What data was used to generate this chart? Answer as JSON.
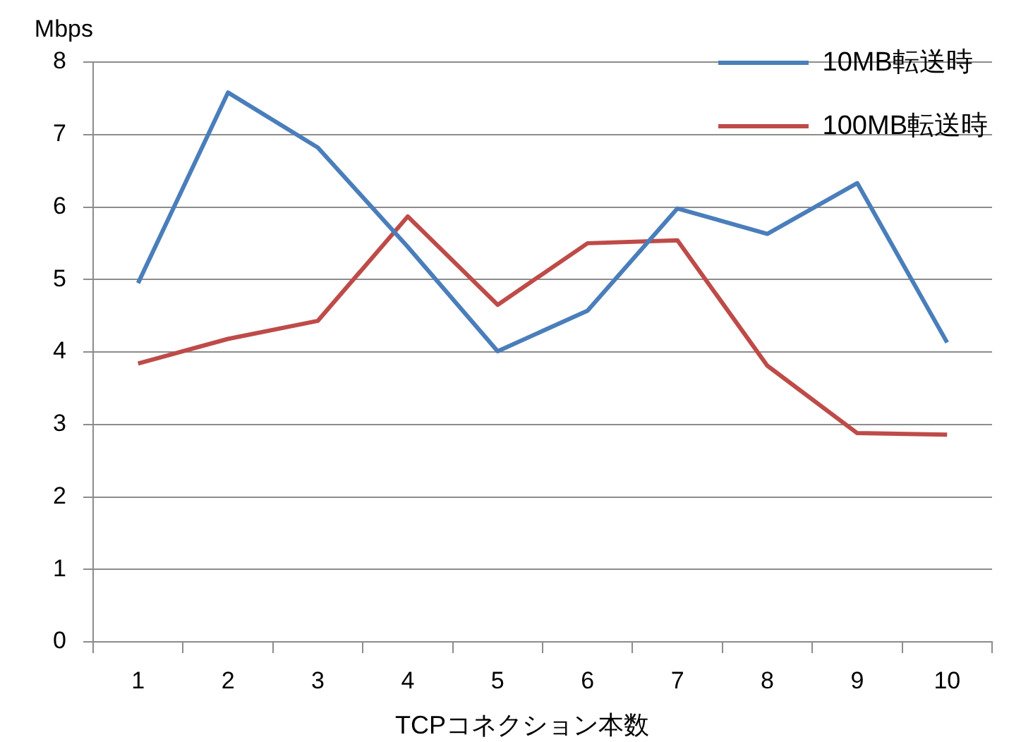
{
  "chart_data": {
    "type": "line",
    "xlabel": "TCPコネクション本数",
    "ylabel": "Mbps",
    "categories": [
      "1",
      "2",
      "3",
      "4",
      "5",
      "6",
      "7",
      "8",
      "9",
      "10"
    ],
    "series": [
      {
        "name": "10MB転送時",
        "color": "#4a7ebb",
        "values": [
          4.95,
          7.58,
          6.82,
          5.45,
          4.01,
          4.57,
          5.98,
          5.63,
          6.33,
          4.13
        ]
      },
      {
        "name": "100MB転送時",
        "color": "#be4b48",
        "values": [
          3.84,
          4.18,
          4.43,
          5.87,
          4.65,
          5.5,
          5.54,
          3.81,
          2.88,
          2.86
        ]
      }
    ],
    "ylim": [
      0,
      8
    ],
    "yticks": [
      0,
      1,
      2,
      3,
      4,
      5,
      6,
      7,
      8
    ],
    "grid": "y",
    "legend": "top right",
    "marker": "none",
    "line_style": "solid"
  }
}
